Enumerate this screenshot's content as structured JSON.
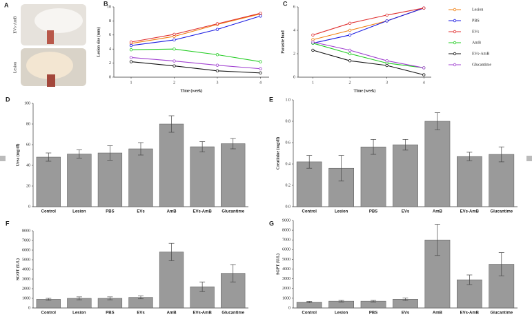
{
  "panel_a": {
    "label": "A",
    "images": [
      "EVs-AmB",
      "Lesion"
    ]
  },
  "chart_data": [
    {
      "type": "line",
      "label": "B",
      "x_label": "Time (week)",
      "y_label": "Lesion size (mm)",
      "x": [
        1,
        2,
        3,
        4
      ],
      "xlim": [
        0.6,
        4.2
      ],
      "xticks": [
        1,
        2,
        3,
        4
      ],
      "ylim": [
        0,
        10
      ],
      "yticks": [
        0,
        2,
        4,
        6,
        8,
        10
      ],
      "series": [
        {
          "color": "#f07f10",
          "values": [
            4.8,
            5.8,
            7.5,
            9.0
          ]
        },
        {
          "color": "#1a1ae0",
          "values": [
            4.5,
            5.3,
            6.8,
            8.7
          ]
        },
        {
          "color": "#e03030",
          "values": [
            5.0,
            6.1,
            7.6,
            9.1
          ]
        },
        {
          "color": "#22cc22",
          "values": [
            3.9,
            4.0,
            3.2,
            2.2
          ]
        },
        {
          "color": "#111111",
          "values": [
            2.2,
            1.6,
            0.9,
            0.6
          ]
        },
        {
          "color": "#a040d0",
          "values": [
            2.8,
            2.3,
            1.7,
            1.2
          ]
        }
      ]
    },
    {
      "type": "line",
      "label": "C",
      "x_label": "Time (week)",
      "y_label": "Parasite load",
      "x": [
        1,
        2,
        3,
        4
      ],
      "xlim": [
        0.6,
        4.2
      ],
      "xticks": [
        1,
        2,
        3,
        4
      ],
      "ylim": [
        0,
        6
      ],
      "yticks": [
        0,
        2,
        4,
        6
      ],
      "legend": "right",
      "series": [
        {
          "name": "Lesion",
          "color": "#f07f10",
          "values": [
            3.2,
            4.0,
            4.8,
            5.9
          ]
        },
        {
          "name": "PBS",
          "color": "#1a1ae0",
          "values": [
            2.9,
            3.6,
            4.8,
            5.9
          ]
        },
        {
          "name": "EVs",
          "color": "#e03030",
          "values": [
            3.6,
            4.6,
            5.3,
            5.9
          ]
        },
        {
          "name": "AmB",
          "color": "#22cc22",
          "values": [
            2.9,
            2.0,
            1.2,
            0.8
          ]
        },
        {
          "name": "EVs-AmB",
          "color": "#111111",
          "values": [
            2.3,
            1.4,
            1.0,
            0.2
          ]
        },
        {
          "name": "Glucantime",
          "color": "#a040d0",
          "values": [
            3.0,
            2.3,
            1.4,
            0.8
          ]
        }
      ]
    },
    {
      "type": "bar",
      "label": "D",
      "y_label": "Urea (mg/dl)",
      "color": "#9a9a9a",
      "categories": [
        "Control",
        "Lesion",
        "PBS",
        "EVs",
        "AmB",
        "EVs-AmB",
        "Glucantime"
      ],
      "values": [
        48,
        51,
        52,
        56,
        80,
        58,
        61
      ],
      "errors": [
        4,
        4,
        7,
        6,
        8,
        5,
        5
      ],
      "ylim": [
        0,
        100
      ],
      "yticks": [
        0,
        20,
        40,
        60,
        80,
        100
      ]
    },
    {
      "type": "bar",
      "label": "E",
      "y_label": "Creatinine (mg/dl)",
      "color": "#9a9a9a",
      "categories": [
        "Control",
        "Lesion",
        "PBS",
        "EVs",
        "AmB",
        "EVs-AmB",
        "Glucantime"
      ],
      "values": [
        0.42,
        0.36,
        0.56,
        0.58,
        0.8,
        0.47,
        0.49
      ],
      "errors": [
        0.06,
        0.12,
        0.07,
        0.05,
        0.08,
        0.04,
        0.07
      ],
      "ylim": [
        0,
        1
      ],
      "yticks": [
        {
          "value": 0,
          "label": "0.0"
        },
        {
          "value": 0.2,
          "label": "0.2"
        },
        {
          "value": 0.4,
          "label": "0.4"
        },
        {
          "value": 0.6,
          "label": "0.6"
        },
        {
          "value": 0.8,
          "label": "0.8"
        },
        {
          "value": 1,
          "label": "1.0"
        }
      ]
    },
    {
      "type": "bar",
      "label": "F",
      "y_label": "SGOT (U/L)",
      "color": "#9a9a9a",
      "categories": [
        "Control",
        "Lesion",
        "PBS",
        "EVs",
        "AmB",
        "EVs-AmB",
        "Glucantime"
      ],
      "values": [
        900,
        1000,
        1000,
        1100,
        5800,
        2200,
        3600
      ],
      "errors": [
        100,
        150,
        150,
        150,
        900,
        500,
        900
      ],
      "ylim": [
        0,
        8000
      ],
      "yticks": [
        0,
        1000,
        2000,
        3000,
        4000,
        5000,
        6000,
        7000,
        8000
      ]
    },
    {
      "type": "bar",
      "label": "G",
      "y_label": "SGPT (U/L)",
      "color": "#9a9a9a",
      "categories": [
        "Control",
        "Lesion",
        "PBS",
        "EVs",
        "AmB",
        "EVs-AmB",
        "Glucantime"
      ],
      "values": [
        600,
        700,
        700,
        900,
        7000,
        2900,
        4500
      ],
      "errors": [
        80,
        80,
        80,
        120,
        1600,
        500,
        1200
      ],
      "ylim": [
        0,
        9000
      ],
      "yticks": [
        0,
        1000,
        2000,
        3000,
        4000,
        5000,
        6000,
        7000,
        8000,
        9000
      ]
    }
  ]
}
